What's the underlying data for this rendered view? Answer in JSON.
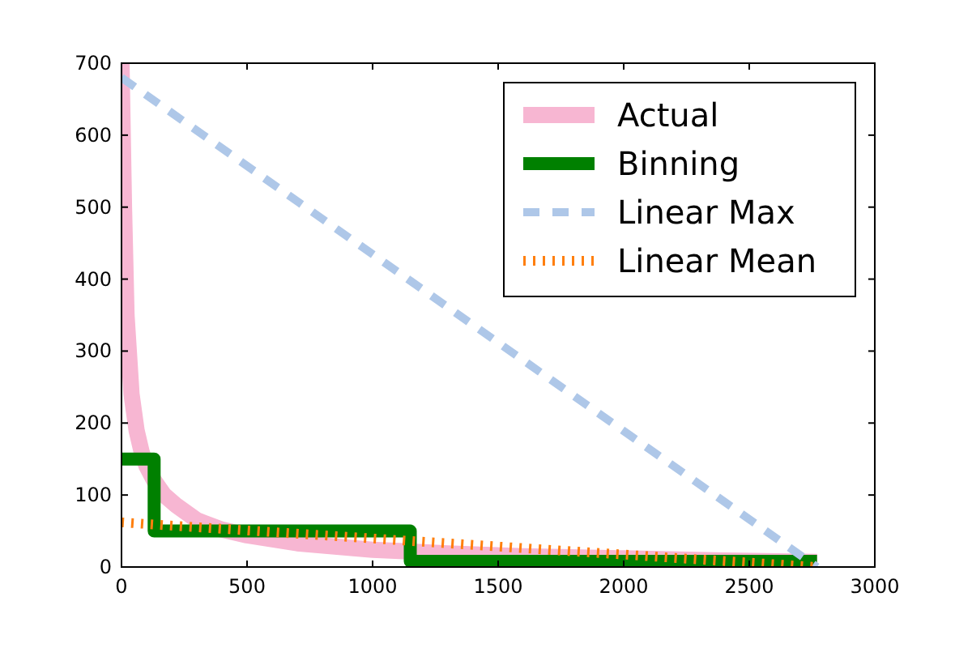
{
  "chart_data": {
    "type": "line",
    "xlim": [
      0,
      3000
    ],
    "ylim": [
      0,
      700
    ],
    "xticks": [
      0,
      500,
      1000,
      1500,
      2000,
      2500,
      3000
    ],
    "yticks": [
      0,
      100,
      200,
      300,
      400,
      500,
      600,
      700
    ],
    "grid": false,
    "legend": "top right",
    "series": [
      {
        "name": "Actual",
        "color": "#f7b6d2",
        "line_style": "solid",
        "x": [
          0,
          10,
          20,
          40,
          60,
          80,
          100,
          130,
          170,
          220,
          300,
          400,
          500,
          700,
          1000,
          1300,
          1600,
          2000,
          2400,
          2770
        ],
        "values": [
          700,
          500,
          350,
          240,
          190,
          160,
          140,
          120,
          100,
          85,
          65,
          52,
          44,
          33,
          24,
          19,
          15,
          12,
          9,
          7
        ]
      },
      {
        "name": "Binning",
        "type": "step",
        "color": "#008000",
        "line_style": "solid",
        "x": [
          0,
          130,
          1150,
          2770
        ],
        "values": [
          150,
          50,
          8,
          8
        ]
      },
      {
        "name": "Linear Max",
        "color": "#aec7e8",
        "line_style": "dashed",
        "x": [
          0,
          2770
        ],
        "values": [
          680,
          0
        ]
      },
      {
        "name": "Linear Mean",
        "color": "#ff7f0e",
        "line_style": "dotted",
        "x": [
          0,
          2770
        ],
        "values": [
          62,
          0
        ]
      }
    ]
  }
}
